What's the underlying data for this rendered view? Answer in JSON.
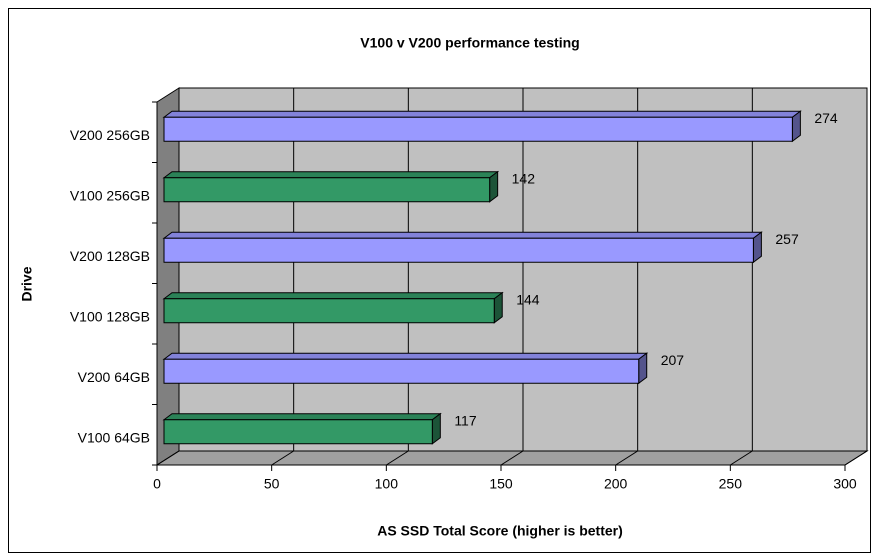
{
  "chart_data": {
    "type": "bar3d_horizontal",
    "title": "V100 v V200 performance testing",
    "xlabel": "AS SSD Total Score (higher is better)",
    "ylabel": "Drive",
    "categories": [
      "V200 256GB",
      "V100 256GB",
      "V200 128GB",
      "V100 128GB",
      "V200 64GB",
      "V100 64GB"
    ],
    "values": [
      274,
      142,
      257,
      144,
      207,
      117
    ],
    "colors": [
      "#9999ff",
      "#339966",
      "#9999ff",
      "#339966",
      "#9999ff",
      "#339966"
    ],
    "xlim": [
      0,
      300
    ],
    "xticks": [
      0,
      50,
      100,
      150,
      200,
      250,
      300
    ],
    "grid": true
  }
}
